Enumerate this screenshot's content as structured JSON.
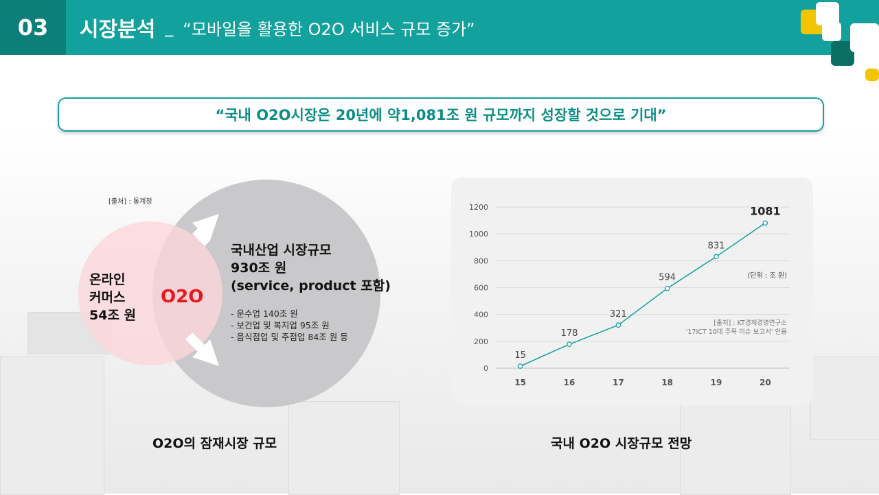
{
  "header": {
    "number": "03",
    "title": "시장분석",
    "separator": "_",
    "subtitle": "“모바일을 활용한 O2O 서비스 규모 증가”"
  },
  "quote": "“국내 O2O시장은 20년에 약1,081조 원 규모까지 성장할 것으로 기대”",
  "venn": {
    "source": "[출처] : 통계청",
    "left_lines": [
      "온라인",
      "커머스",
      "54조 원"
    ],
    "center": "O2O",
    "right_title_lines": [
      "국내산업 시장규모",
      "930조 원",
      "(service, product 포함)"
    ],
    "bullets": [
      "- 운수업 140조 원",
      "- 보건업 및 복지업 95조 원",
      "- 음식점업 및 주점업 84조 원 등"
    ],
    "caption": "O2O의 잠재시장 규모"
  },
  "chart_caption": "국내 O2O 시장규모 전망",
  "colors": {
    "teal": "#12a19d",
    "teal_dark": "#0b7f78",
    "red": "#e8161d",
    "pink": "#fdd6db",
    "gray_circle": "#c9c9cb",
    "yellow": "#f2c500"
  },
  "chart_data": {
    "type": "line",
    "categories": [
      "15",
      "16",
      "17",
      "18",
      "19",
      "20"
    ],
    "values": [
      15,
      178,
      321,
      594,
      831,
      1081
    ],
    "data_labels": [
      "15",
      "178",
      "321",
      "594",
      "831",
      "1081"
    ],
    "y_ticks": [
      "0",
      "200",
      "400",
      "600",
      "800",
      "1000",
      "1200"
    ],
    "ylim": [
      0,
      1200
    ],
    "unit_note": "(단위 : 조 원)",
    "source_lines": [
      "[출처] : KT경제경영연구소",
      "'17ICT 10대 주목 이슈 보고서' 인용"
    ],
    "grid": true,
    "line_color": "#12a19d"
  }
}
